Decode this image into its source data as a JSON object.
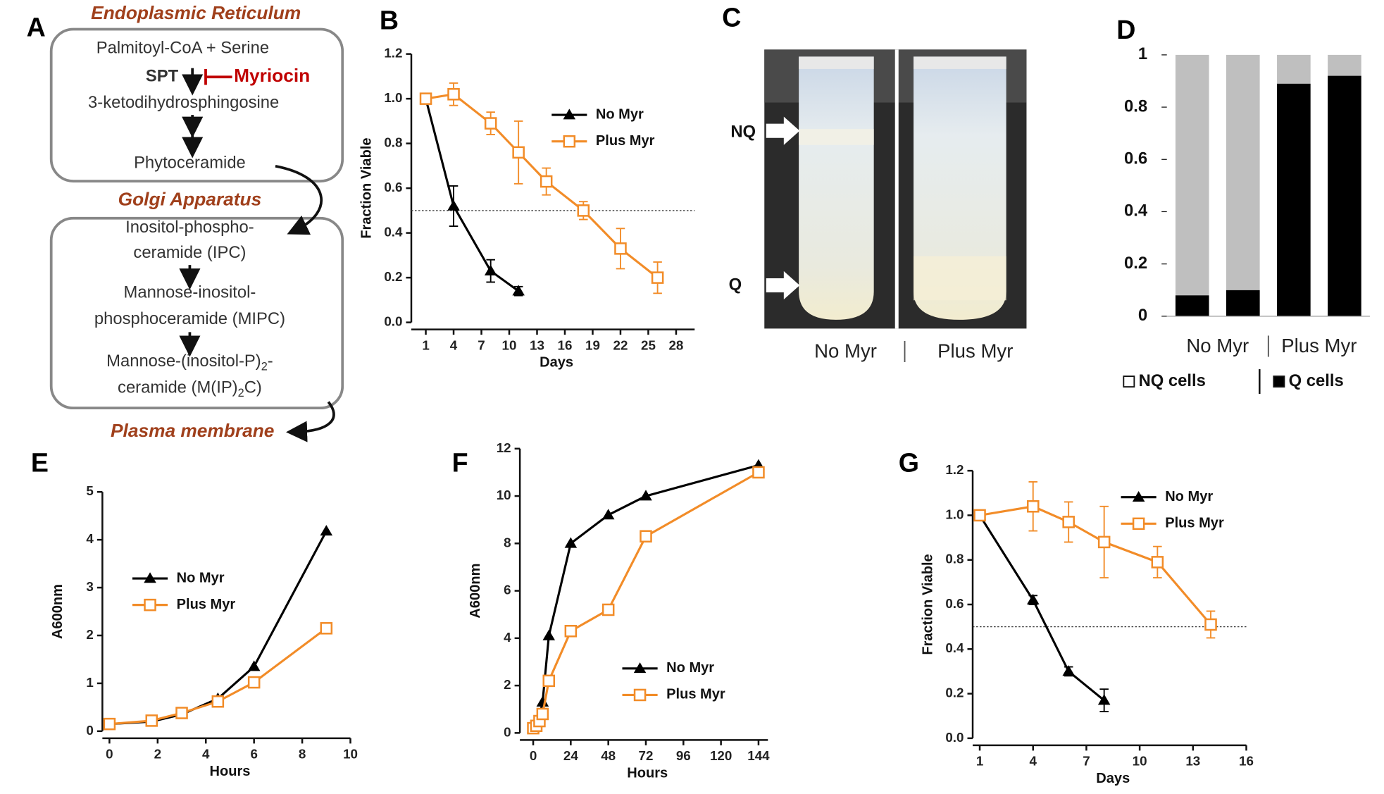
{
  "panel_labels": [
    "A",
    "B",
    "C",
    "D",
    "E",
    "F",
    "G"
  ],
  "pathway": {
    "compartments": [
      "Endoplasmic Reticulum",
      "Golgi Apparatus",
      "Plasma membrane"
    ],
    "steps": [
      "Palmitoyl-CoA + Serine",
      "3-ketodihydrosphingosine",
      "Phytoceramide",
      "Inositol-phospho-",
      "ceramide (IPC)",
      "Mannose-inositol-",
      "phosphoceramide (MIPC)"
    ],
    "step_multi": [
      [
        "Mannose-(inositol-P)",
        "2",
        "-"
      ],
      [
        "ceramide (M(IP)",
        "2",
        "C)"
      ]
    ],
    "enzyme": "SPT",
    "inhibitor": "Myriocin"
  },
  "tubes": {
    "band_labels": [
      "NQ",
      "Q"
    ],
    "tube_labels": [
      "No Myr",
      "Plus Myr"
    ]
  },
  "chart_data": [
    {
      "type": "line",
      "x_label": "Days",
      "y_label": "Fraction Viable",
      "xlim": [
        0.2,
        30
      ],
      "xticks": [
        1,
        4,
        7,
        10,
        13,
        16,
        19,
        22,
        25,
        28
      ],
      "ylim": [
        0,
        1.2
      ],
      "yticks": [
        {
          "value": 0,
          "label": "0.0"
        },
        0.2,
        0.4,
        0.6,
        0.8,
        {
          "value": 1,
          "label": "1.0"
        },
        1.2
      ],
      "reference_line": 0.5,
      "series": [
        {
          "name": "No Myr",
          "color": "#000000",
          "marker": "triangle",
          "x": [
            1,
            4,
            8,
            11
          ],
          "values": [
            1.0,
            0.52,
            0.23,
            0.14
          ],
          "errors": [
            0,
            0.09,
            0.05,
            0.02
          ]
        },
        {
          "name": "Plus Myr",
          "color": "#f28c28",
          "marker": "square",
          "x": [
            1,
            4,
            8,
            11,
            14,
            18,
            22,
            26
          ],
          "values": [
            1.0,
            1.02,
            0.89,
            0.76,
            0.63,
            0.5,
            0.33,
            0.2
          ],
          "errors": [
            0.02,
            0.05,
            0.05,
            0.14,
            0.06,
            0.04,
            0.09,
            0.07
          ]
        }
      ]
    },
    {
      "type": "stacked_bar",
      "categories": [
        null,
        null,
        null,
        null
      ],
      "group_labels": [
        "No Myr",
        "Plus Myr"
      ],
      "ylim": [
        0,
        1
      ],
      "yticks": [
        0,
        0.2,
        0.4,
        0.6,
        0.8,
        1
      ],
      "series": [
        {
          "name": "Q cells",
          "color": "#000000",
          "values": [
            0.08,
            0.1,
            0.89,
            0.92
          ]
        },
        {
          "name": "NQ cells",
          "color": "#bfbfbf",
          "values": [
            0.92,
            0.9,
            0.11,
            0.08
          ]
        }
      ]
    },
    {
      "type": "line",
      "x_label": "Hours",
      "y_label": "A600nm",
      "xlim": [
        0,
        10
      ],
      "xticks": [
        0,
        2,
        4,
        6,
        8,
        10
      ],
      "ylim": [
        0,
        5
      ],
      "yticks": [
        0,
        1,
        2,
        3,
        4,
        5
      ],
      "series": [
        {
          "name": "No Myr",
          "color": "#000000",
          "marker": "triangle",
          "x": [
            0,
            1.75,
            3,
            4.5,
            6,
            9
          ],
          "values": [
            0.15,
            0.2,
            0.35,
            0.68,
            1.35,
            4.18
          ]
        },
        {
          "name": "Plus Myr",
          "color": "#f28c28",
          "marker": "square",
          "x": [
            0,
            1.75,
            3,
            4.5,
            6,
            9
          ],
          "values": [
            0.15,
            0.22,
            0.38,
            0.62,
            1.02,
            2.15
          ]
        }
      ]
    },
    {
      "type": "line",
      "x_label": "Hours",
      "y_label": "A600nm",
      "xlim": [
        -4,
        150
      ],
      "xticks": [
        0,
        24,
        48,
        72,
        96,
        120,
        144
      ],
      "ylim": [
        0,
        12
      ],
      "yticks": [
        0,
        2,
        4,
        6,
        8,
        10,
        12
      ],
      "series": [
        {
          "name": "No Myr",
          "color": "#000000",
          "marker": "triangle",
          "x": [
            0,
            2,
            4,
            6,
            10,
            24,
            48,
            72,
            144
          ],
          "values": [
            0.2,
            0.4,
            0.7,
            1.3,
            4.1,
            8.0,
            9.2,
            10.0,
            11.3
          ]
        },
        {
          "name": "Plus Myr",
          "color": "#f28c28",
          "marker": "square",
          "x": [
            0,
            2,
            4,
            6,
            10,
            24,
            48,
            72,
            144
          ],
          "values": [
            0.2,
            0.3,
            0.5,
            0.8,
            2.2,
            4.3,
            5.2,
            8.3,
            11.0
          ]
        }
      ]
    },
    {
      "type": "line",
      "x_label": "Days",
      "y_label": "Fraction Viable",
      "xlim": [
        1,
        16
      ],
      "xticks": [
        1,
        4,
        7,
        10,
        13,
        16
      ],
      "ylim": [
        0,
        1.2
      ],
      "yticks": [
        {
          "value": 0,
          "label": "0.0"
        },
        0.2,
        0.4,
        0.6,
        0.8,
        {
          "value": 1,
          "label": "1.0"
        },
        1.2
      ],
      "reference_line": 0.5,
      "series": [
        {
          "name": "No Myr",
          "color": "#000000",
          "marker": "triangle",
          "x": [
            1,
            4,
            6,
            8
          ],
          "values": [
            1.0,
            0.62,
            0.3,
            0.17
          ],
          "errors": [
            0,
            0.02,
            0.02,
            0.05
          ]
        },
        {
          "name": "Plus Myr",
          "color": "#f28c28",
          "marker": "square",
          "x": [
            1,
            4,
            6,
            8,
            11,
            14
          ],
          "values": [
            1.0,
            1.04,
            0.97,
            0.88,
            0.79,
            0.51
          ],
          "errors": [
            0.02,
            0.11,
            0.09,
            0.16,
            0.07,
            0.06
          ]
        }
      ]
    }
  ]
}
